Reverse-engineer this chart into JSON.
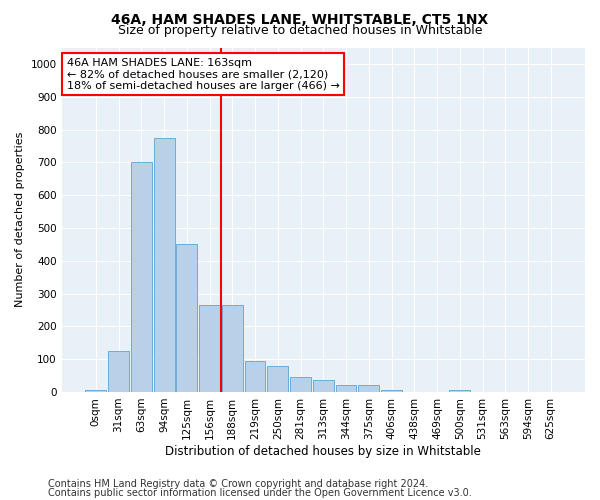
{
  "title": "46A, HAM SHADES LANE, WHITSTABLE, CT5 1NX",
  "subtitle": "Size of property relative to detached houses in Whitstable",
  "xlabel": "Distribution of detached houses by size in Whitstable",
  "ylabel": "Number of detached properties",
  "bar_labels": [
    "0sqm",
    "31sqm",
    "63sqm",
    "94sqm",
    "125sqm",
    "156sqm",
    "188sqm",
    "219sqm",
    "250sqm",
    "281sqm",
    "313sqm",
    "344sqm",
    "375sqm",
    "406sqm",
    "438sqm",
    "469sqm",
    "500sqm",
    "531sqm",
    "563sqm",
    "594sqm",
    "625sqm"
  ],
  "bar_values": [
    5,
    125,
    700,
    775,
    450,
    265,
    265,
    95,
    80,
    45,
    35,
    20,
    20,
    5,
    0,
    0,
    5,
    0,
    0,
    0,
    0
  ],
  "bar_color": "#b8d0e8",
  "bar_edge_color": "#6aaed6",
  "vline_x": 5.52,
  "vline_color": "red",
  "annotation_text": "46A HAM SHADES LANE: 163sqm\n← 82% of detached houses are smaller (2,120)\n18% of semi-detached houses are larger (466) →",
  "annotation_box_color": "white",
  "annotation_box_edge": "red",
  "ylim": [
    0,
    1050
  ],
  "yticks": [
    0,
    100,
    200,
    300,
    400,
    500,
    600,
    700,
    800,
    900,
    1000
  ],
  "background_color": "#e8f0f8",
  "footer1": "Contains HM Land Registry data © Crown copyright and database right 2024.",
  "footer2": "Contains public sector information licensed under the Open Government Licence v3.0.",
  "title_fontsize": 10,
  "subtitle_fontsize": 9,
  "xlabel_fontsize": 8.5,
  "ylabel_fontsize": 8,
  "tick_fontsize": 7.5,
  "annotation_fontsize": 8,
  "footer_fontsize": 7
}
